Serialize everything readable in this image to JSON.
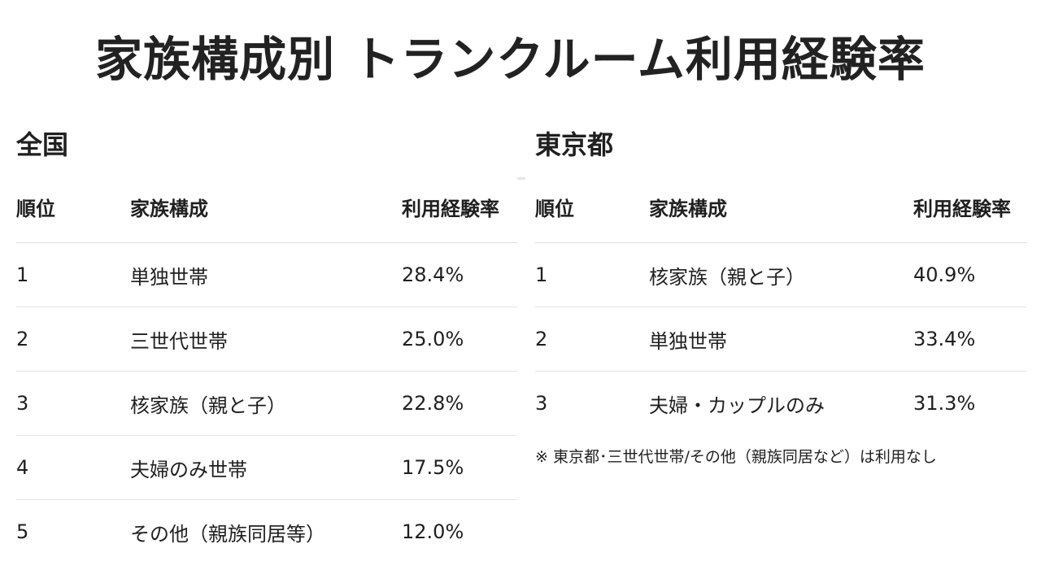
{
  "title": "家族構成別 トランクルーム利用経験率",
  "national": {
    "heading": "全国",
    "columns": {
      "rank": "順位",
      "family": "家族構成",
      "rate": "利用経験率"
    },
    "rows": [
      {
        "rank": "1",
        "family": "単独世帯",
        "rate": "28.4%"
      },
      {
        "rank": "2",
        "family": "三世代世帯",
        "rate": "25.0%"
      },
      {
        "rank": "3",
        "family": "核家族（親と子）",
        "rate": "22.8%"
      },
      {
        "rank": "4",
        "family": "夫婦のみ世帯",
        "rate": "17.5%"
      },
      {
        "rank": "5",
        "family": "その他（親族同居等）",
        "rate": "12.0%"
      }
    ]
  },
  "tokyo": {
    "heading": "東京都",
    "columns": {
      "rank": "順位",
      "family": "家族構成",
      "rate": "利用経験率"
    },
    "rows": [
      {
        "rank": "1",
        "family": "核家族（親と子）",
        "rate": "40.9%"
      },
      {
        "rank": "2",
        "family": "単独世帯",
        "rate": "33.4%"
      },
      {
        "rank": "3",
        "family": "夫婦・カップルのみ",
        "rate": "31.3%"
      }
    ],
    "note": "※ 東京都･三世代世帯/その他（親族同居など）は利用なし"
  }
}
